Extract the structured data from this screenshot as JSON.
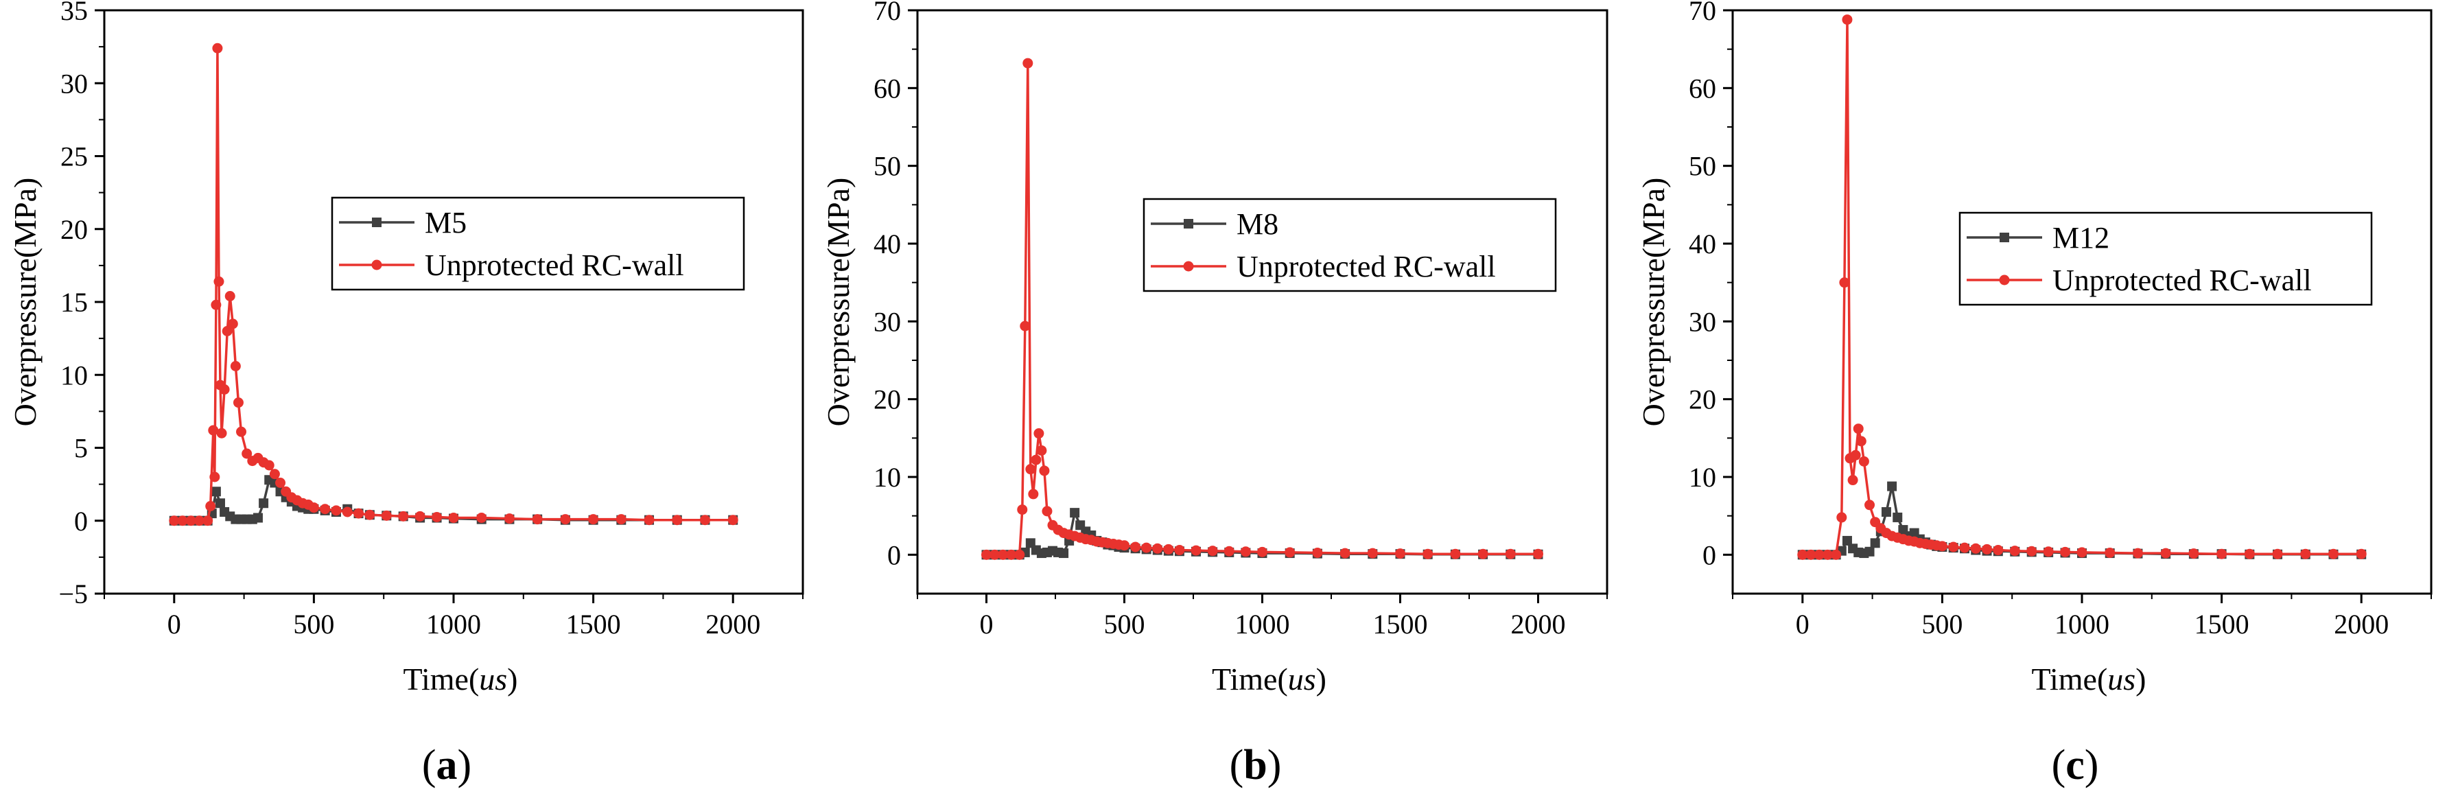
{
  "chart_data": [
    {
      "type": "line",
      "panel_label": "a",
      "xlabel": "Time(us)",
      "ylabel": "Overpressure(MPa)",
      "xlim": [
        -250,
        2250
      ],
      "ylim": [
        -5,
        35
      ],
      "xticks": [
        0,
        500,
        1000,
        1500,
        2000
      ],
      "yticks": [
        -5,
        0,
        5,
        10,
        15,
        20,
        25,
        30,
        35
      ],
      "legend_position": "middle-right",
      "series": [
        {
          "name": "M5",
          "color": "#404040",
          "marker": "square",
          "x": [
            0,
            30,
            60,
            90,
            120,
            135,
            150,
            165,
            180,
            200,
            220,
            240,
            260,
            280,
            300,
            320,
            340,
            360,
            380,
            400,
            420,
            440,
            460,
            480,
            500,
            540,
            580,
            620,
            660,
            700,
            760,
            820,
            880,
            940,
            1000,
            1100,
            1200,
            1300,
            1400,
            1500,
            1600,
            1700,
            1800,
            1900,
            2000
          ],
          "y": [
            0,
            0,
            0,
            0,
            0,
            0.5,
            2.0,
            1.2,
            0.6,
            0.3,
            0.1,
            0.1,
            0.1,
            0.1,
            0.2,
            1.2,
            2.8,
            2.6,
            2.0,
            1.6,
            1.3,
            1.0,
            0.9,
            0.8,
            0.8,
            0.7,
            0.6,
            0.8,
            0.5,
            0.4,
            0.35,
            0.3,
            0.2,
            0.2,
            0.15,
            0.1,
            0.1,
            0.1,
            0.05,
            0.05,
            0.05,
            0.05,
            0.05,
            0.05,
            0.05
          ]
        },
        {
          "name": "Unprotected RC-wall",
          "color": "#e8332e",
          "marker": "circle",
          "x": [
            0,
            30,
            60,
            90,
            120,
            130,
            140,
            145,
            150,
            155,
            160,
            165,
            170,
            180,
            190,
            200,
            210,
            220,
            230,
            240,
            260,
            280,
            300,
            320,
            340,
            360,
            380,
            400,
            420,
            440,
            460,
            480,
            500,
            540,
            580,
            620,
            660,
            700,
            760,
            820,
            880,
            940,
            1000,
            1100,
            1200,
            1300,
            1400,
            1500,
            1600,
            1700,
            1800,
            1900,
            2000
          ],
          "y": [
            0,
            0,
            0,
            0,
            0,
            1.0,
            6.2,
            3.0,
            14.8,
            32.4,
            16.4,
            9.3,
            6.0,
            9.0,
            13.0,
            15.4,
            13.5,
            10.6,
            8.1,
            6.1,
            4.6,
            4.1,
            4.3,
            4.0,
            3.8,
            3.2,
            2.6,
            2.0,
            1.6,
            1.4,
            1.2,
            1.1,
            0.9,
            0.8,
            0.7,
            0.6,
            0.5,
            0.4,
            0.35,
            0.3,
            0.3,
            0.25,
            0.2,
            0.2,
            0.15,
            0.1,
            0.1,
            0.1,
            0.1,
            0.05,
            0.05,
            0.05,
            0.05
          ]
        }
      ]
    },
    {
      "type": "line",
      "panel_label": "b",
      "xlabel": "Time(us)",
      "ylabel": "Overpressure(MPa)",
      "xlim": [
        -250,
        2250
      ],
      "ylim": [
        -5,
        70
      ],
      "xticks": [
        0,
        500,
        1000,
        1500,
        2000
      ],
      "yticks": [
        0,
        10,
        20,
        30,
        40,
        50,
        60,
        70
      ],
      "legend_position": "middle-right",
      "series": [
        {
          "name": "M8",
          "color": "#404040",
          "marker": "square",
          "x": [
            0,
            30,
            60,
            90,
            120,
            140,
            160,
            180,
            200,
            220,
            240,
            260,
            280,
            300,
            320,
            340,
            360,
            380,
            400,
            420,
            440,
            460,
            480,
            500,
            540,
            580,
            620,
            660,
            700,
            760,
            820,
            880,
            940,
            1000,
            1100,
            1200,
            1300,
            1400,
            1500,
            1600,
            1700,
            1800,
            1900,
            2000
          ],
          "y": [
            0,
            0,
            0,
            0,
            0,
            0.3,
            1.5,
            0.6,
            0.2,
            0.3,
            0.5,
            0.3,
            0.2,
            1.8,
            5.4,
            3.8,
            3.0,
            2.5,
            1.8,
            1.6,
            1.3,
            1.2,
            1.0,
            0.9,
            0.8,
            0.7,
            0.6,
            0.5,
            0.45,
            0.4,
            0.35,
            0.3,
            0.25,
            0.2,
            0.2,
            0.15,
            0.1,
            0.1,
            0.1,
            0.05,
            0.05,
            0.05,
            0.05,
            0.05
          ]
        },
        {
          "name": "Unprotected RC-wall",
          "color": "#e8332e",
          "marker": "circle",
          "x": [
            0,
            30,
            60,
            90,
            120,
            130,
            140,
            150,
            160,
            170,
            180,
            190,
            200,
            210,
            220,
            240,
            260,
            280,
            300,
            320,
            340,
            360,
            380,
            400,
            420,
            440,
            460,
            480,
            500,
            540,
            580,
            620,
            660,
            700,
            760,
            820,
            880,
            940,
            1000,
            1100,
            1200,
            1300,
            1400,
            1500,
            1600,
            1700,
            1800,
            1900,
            2000
          ],
          "y": [
            0,
            0,
            0,
            0,
            0,
            5.8,
            29.4,
            63.2,
            11.0,
            7.8,
            12.2,
            15.6,
            13.4,
            10.8,
            5.6,
            3.8,
            3.2,
            2.8,
            2.6,
            2.4,
            2.2,
            2.0,
            1.9,
            1.7,
            1.6,
            1.5,
            1.4,
            1.3,
            1.2,
            1.0,
            0.9,
            0.8,
            0.7,
            0.6,
            0.55,
            0.5,
            0.45,
            0.4,
            0.35,
            0.3,
            0.25,
            0.2,
            0.2,
            0.15,
            0.1,
            0.1,
            0.1,
            0.1,
            0.1
          ]
        }
      ]
    },
    {
      "type": "line",
      "panel_label": "c",
      "xlabel": "Time(us)",
      "ylabel": "Overpressure(MPa)",
      "xlim": [
        -250,
        2250
      ],
      "ylim": [
        -5,
        70
      ],
      "xticks": [
        0,
        500,
        1000,
        1500,
        2000
      ],
      "yticks": [
        0,
        10,
        20,
        30,
        40,
        50,
        60,
        70
      ],
      "legend_position": "middle-right",
      "series": [
        {
          "name": "M12",
          "color": "#404040",
          "marker": "square",
          "x": [
            0,
            30,
            60,
            90,
            120,
            140,
            160,
            180,
            200,
            220,
            240,
            260,
            280,
            300,
            320,
            340,
            360,
            380,
            400,
            420,
            440,
            460,
            480,
            500,
            540,
            580,
            620,
            660,
            700,
            760,
            820,
            880,
            940,
            1000,
            1100,
            1200,
            1300,
            1400,
            1500,
            1600,
            1700,
            1800,
            1900,
            2000
          ],
          "y": [
            0,
            0,
            0,
            0,
            0,
            0.5,
            1.8,
            0.8,
            0.3,
            0.2,
            0.4,
            1.5,
            3.0,
            5.5,
            8.8,
            4.8,
            3.2,
            2.4,
            2.8,
            2.0,
            1.6,
            1.3,
            1.1,
            1.0,
            0.9,
            0.8,
            0.6,
            0.5,
            0.45,
            0.4,
            0.35,
            0.3,
            0.25,
            0.2,
            0.2,
            0.15,
            0.1,
            0.1,
            0.1,
            0.05,
            0.05,
            0.05,
            0.05,
            0.05
          ]
        },
        {
          "name": "Unprotected RC-wall",
          "color": "#e8332e",
          "marker": "circle",
          "x": [
            0,
            30,
            60,
            90,
            120,
            140,
            150,
            160,
            170,
            180,
            190,
            200,
            210,
            220,
            240,
            260,
            280,
            300,
            320,
            340,
            360,
            380,
            400,
            420,
            440,
            460,
            480,
            500,
            540,
            580,
            620,
            660,
            700,
            760,
            820,
            880,
            940,
            1000,
            1100,
            1200,
            1300,
            1400,
            1500,
            1600,
            1700,
            1800,
            1900,
            2000
          ],
          "y": [
            0,
            0,
            0,
            0,
            0,
            4.8,
            35.0,
            68.8,
            12.4,
            9.6,
            12.8,
            16.2,
            14.6,
            12.0,
            6.4,
            4.2,
            3.4,
            2.8,
            2.4,
            2.2,
            2.0,
            1.8,
            1.7,
            1.5,
            1.4,
            1.3,
            1.2,
            1.1,
            1.0,
            0.9,
            0.8,
            0.7,
            0.6,
            0.5,
            0.45,
            0.4,
            0.35,
            0.3,
            0.25,
            0.2,
            0.2,
            0.15,
            0.1,
            0.1,
            0.1,
            0.1,
            0.1,
            0.1
          ]
        }
      ]
    }
  ]
}
